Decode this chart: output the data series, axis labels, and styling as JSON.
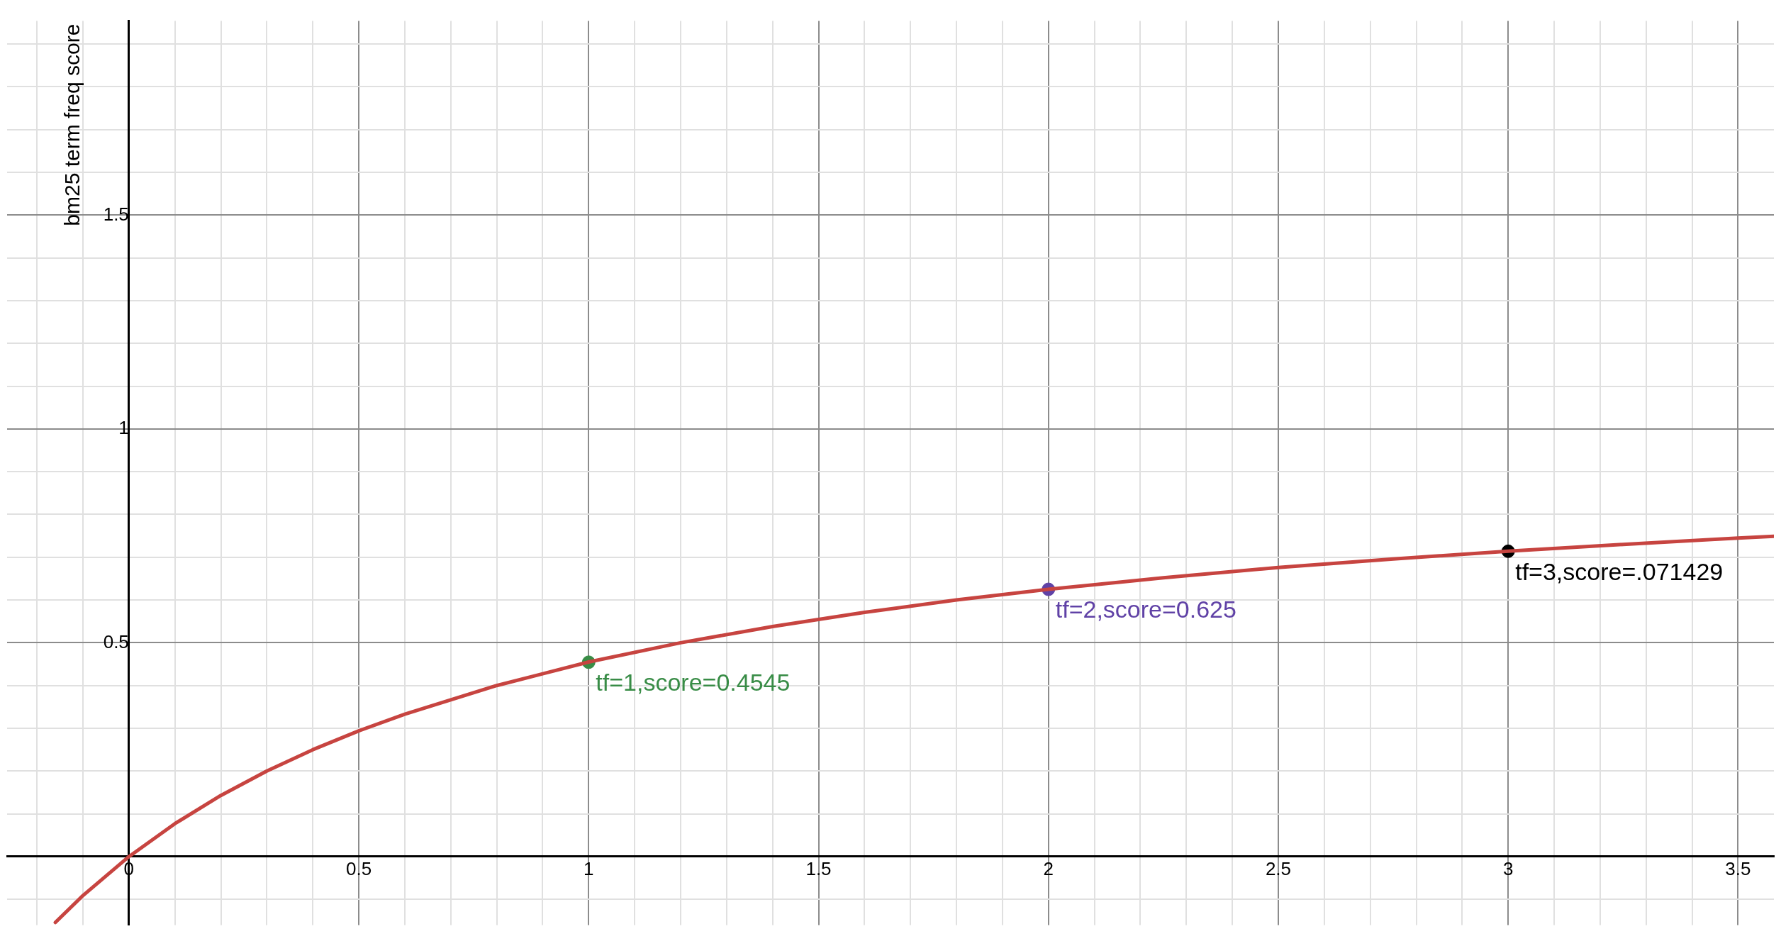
{
  "chart_data": {
    "type": "line",
    "ylabel": "bm25 term freq score",
    "grid": true,
    "legend": false,
    "marker": "none",
    "line_style": "solid",
    "xlim": [
      -0.265,
      3.578
    ],
    "ylim": [
      -0.16,
      1.954
    ],
    "xticks": [
      {
        "value": -0.2,
        "label": null
      },
      {
        "value": -0.1,
        "label": null
      },
      0,
      {
        "value": 0.1,
        "label": null
      },
      {
        "value": 0.2,
        "label": null
      },
      {
        "value": 0.3,
        "label": null
      },
      {
        "value": 0.4,
        "label": null
      },
      0.5,
      {
        "value": 0.6,
        "label": null
      },
      {
        "value": 0.7,
        "label": null
      },
      {
        "value": 0.8,
        "label": null
      },
      {
        "value": 0.9,
        "label": null
      },
      1,
      {
        "value": 1.1,
        "label": null
      },
      {
        "value": 1.2,
        "label": null
      },
      {
        "value": 1.3,
        "label": null
      },
      {
        "value": 1.4,
        "label": null
      },
      1.5,
      {
        "value": 1.6,
        "label": null
      },
      {
        "value": 1.7,
        "label": null
      },
      {
        "value": 1.8,
        "label": null
      },
      {
        "value": 1.9,
        "label": null
      },
      2,
      {
        "value": 2.1,
        "label": null
      },
      {
        "value": 2.2,
        "label": null
      },
      {
        "value": 2.3,
        "label": null
      },
      {
        "value": 2.4,
        "label": null
      },
      2.5,
      {
        "value": 2.6,
        "label": null
      },
      {
        "value": 2.7,
        "label": null
      },
      {
        "value": 2.8,
        "label": null
      },
      {
        "value": 2.9,
        "label": null
      },
      3,
      {
        "value": 3.1,
        "label": null
      },
      {
        "value": 3.2,
        "label": null
      },
      {
        "value": 3.3,
        "label": null
      },
      {
        "value": 3.4,
        "label": null
      },
      3.5
    ],
    "yticks": [
      {
        "value": -0.1,
        "label": null
      },
      {
        "value": 0,
        "label": null
      },
      {
        "value": 0.1,
        "label": null
      },
      {
        "value": 0.2,
        "label": null
      },
      {
        "value": 0.3,
        "label": null
      },
      {
        "value": 0.4,
        "label": null
      },
      0.5,
      {
        "value": 0.6,
        "label": null
      },
      {
        "value": 0.7,
        "label": null
      },
      {
        "value": 0.8,
        "label": null
      },
      {
        "value": 0.9,
        "label": null
      },
      1,
      {
        "value": 1.1,
        "label": null
      },
      {
        "value": 1.2,
        "label": null
      },
      {
        "value": 1.3,
        "label": null
      },
      {
        "value": 1.4,
        "label": null
      },
      1.5,
      {
        "value": 1.6,
        "label": null
      },
      {
        "value": 1.7,
        "label": null
      },
      {
        "value": 1.8,
        "label": null
      },
      {
        "value": 1.9,
        "label": null
      }
    ],
    "series": [
      {
        "color": "#c74440",
        "x": [
          -0.16,
          -0.1,
          0,
          0.1,
          0.2,
          0.3,
          0.4,
          0.5,
          0.6,
          0.8,
          1,
          1.2,
          1.4,
          1.6,
          1.8,
          2,
          2.25,
          2.5,
          2.75,
          3,
          3.25,
          3.5,
          3.578
        ],
        "values": [
          -0.154,
          -0.091,
          0,
          0.077,
          0.143,
          0.2,
          0.25,
          0.294,
          0.333,
          0.4,
          0.455,
          0.5,
          0.538,
          0.571,
          0.6,
          0.625,
          0.652,
          0.676,
          0.696,
          0.714,
          0.73,
          0.745,
          0.749
        ]
      },
      {
        "type": "scatter",
        "marker": "circle",
        "color": "#388c46",
        "x": [
          1
        ],
        "values": [
          0.4545
        ],
        "value_labels": [
          "tf=1,score=0.4545"
        ]
      },
      {
        "type": "scatter",
        "marker": "circle",
        "color": "#6042a6",
        "x": [
          2
        ],
        "values": [
          0.625
        ],
        "value_labels": [
          "tf=2,score=0.625"
        ]
      },
      {
        "type": "scatter",
        "marker": "circle",
        "color": "#000000",
        "x": [
          3
        ],
        "values": [
          0.714
        ],
        "value_labels": [
          "tf=3,score=.071429"
        ]
      }
    ]
  }
}
